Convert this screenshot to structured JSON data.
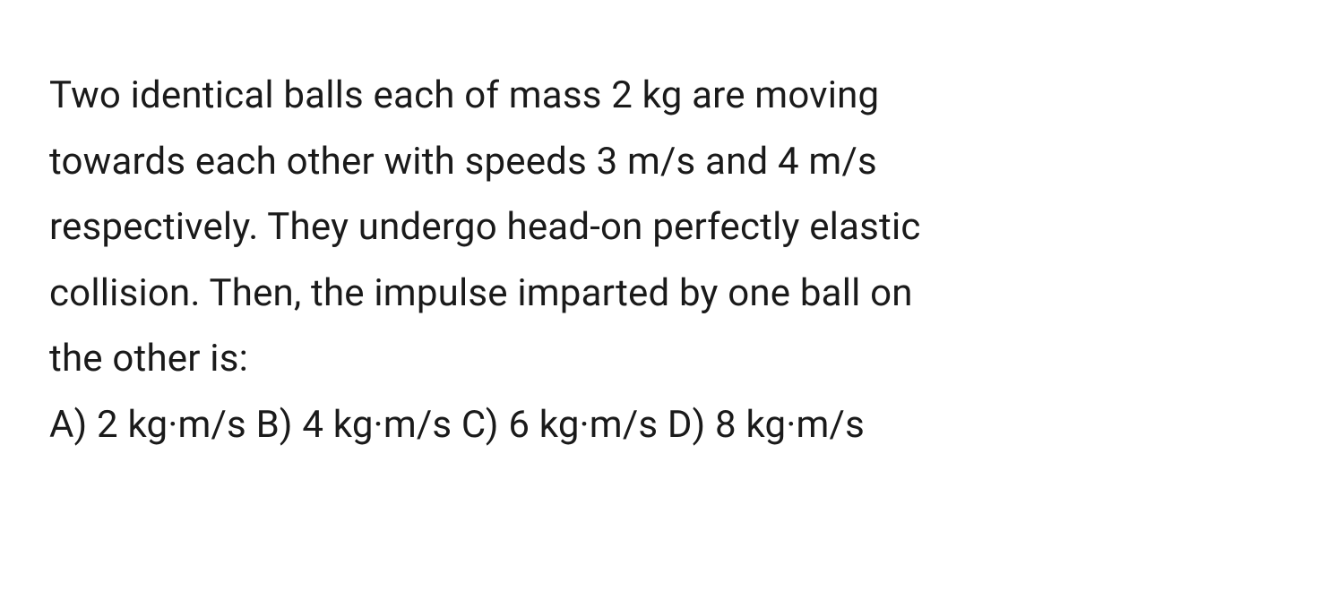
{
  "question": {
    "line1": "Two identical balls each of mass 2 kg are moving",
    "line2": "towards each other with speeds 3 m/s and 4 m/s",
    "line3": "respectively. They undergo head-on perfectly elastic",
    "line4": "collision. Then, the impulse imparted by one ball on",
    "line5": "the other is:"
  },
  "options": {
    "a": "A) 2 kg·m/s ",
    "b": "B) 4 kg·m/s ",
    "c": "C) 6 kg·m/s ",
    "d": "D) 8 kg·m/s"
  },
  "styling": {
    "background_color": "#ffffff",
    "text_color": "#1a1a1a",
    "font_size": 42,
    "line_height": 1.75,
    "font_weight": 400
  }
}
